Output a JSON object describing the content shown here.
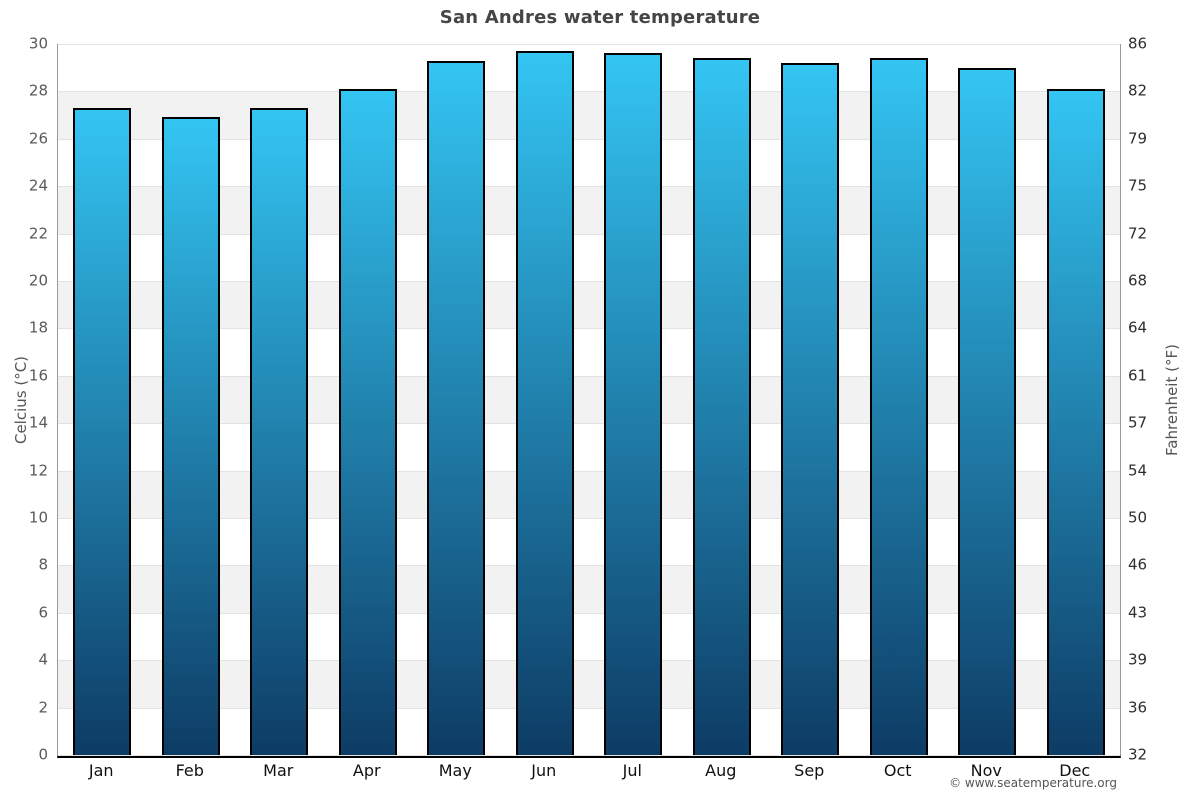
{
  "title": "San Andres water temperature",
  "footer": "© www.seatemperature.org",
  "chart_data": {
    "type": "bar",
    "title": "San Andres water temperature",
    "categories": [
      "Jan",
      "Feb",
      "Mar",
      "Apr",
      "May",
      "Jun",
      "Jul",
      "Aug",
      "Sep",
      "Oct",
      "Nov",
      "Dec"
    ],
    "values": [
      27.3,
      26.9,
      27.3,
      28.1,
      29.3,
      29.7,
      29.6,
      29.4,
      29.2,
      29.4,
      29.0,
      28.1
    ],
    "xlabel": "",
    "ylabel_left": "Celcius (°C)",
    "ylabel_right": "Fahrenheit (°F)",
    "ylim_left": [
      0,
      30
    ],
    "yticks_left": [
      0,
      2,
      4,
      6,
      8,
      10,
      12,
      14,
      16,
      18,
      20,
      22,
      24,
      26,
      28,
      30
    ],
    "yticks_right_labels": [
      "32",
      "36",
      "39",
      "43",
      "46",
      "50",
      "54",
      "57",
      "61",
      "64",
      "68",
      "72",
      "75",
      "79",
      "82",
      "86"
    ],
    "grid": "alternating-horizontal-bands",
    "legend": false,
    "colors": {
      "bar_gradient_top": "#34c5f3",
      "bar_gradient_bottom": "#0d3c65",
      "bar_border": "#000000",
      "band_gray": "#f2f2f2",
      "band_white": "#ffffff",
      "gridline": "#e2e2e2",
      "baseline": "#000000",
      "side_axis": "#9a9a9a",
      "title_text": "#454545",
      "tick_text_left": "#5a5a5a",
      "tick_text_right": "#2e2e2e",
      "month_text": "#111111",
      "footer_text": "#555555"
    }
  }
}
